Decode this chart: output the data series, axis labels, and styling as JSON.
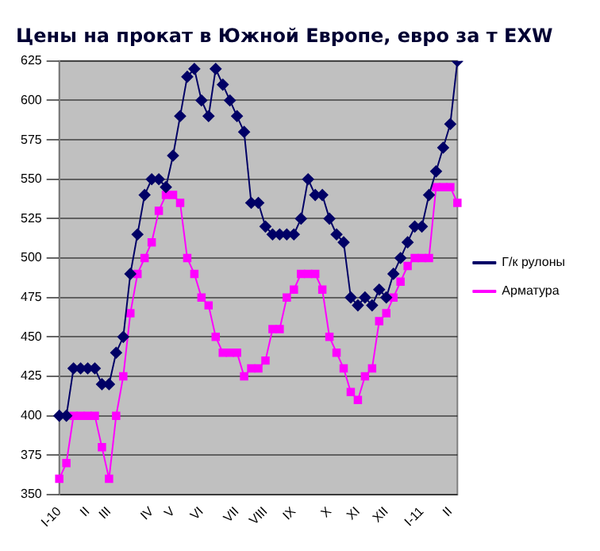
{
  "chart_data": {
    "type": "line",
    "title": "Цены на прокат в Южной Европе, евро за т EXW",
    "categories": [
      "I-10",
      null,
      null,
      null,
      "II",
      null,
      null,
      "III",
      null,
      null,
      null,
      null,
      null,
      "IV",
      null,
      null,
      "V",
      null,
      null,
      null,
      "VI",
      null,
      null,
      null,
      null,
      "VII",
      null,
      null,
      null,
      "VIII",
      null,
      null,
      null,
      "IX",
      null,
      null,
      null,
      null,
      "X",
      null,
      null,
      null,
      "XI",
      null,
      null,
      null,
      "XII",
      null,
      null,
      null,
      null,
      "I-11",
      null,
      null,
      null,
      "II",
      null
    ],
    "series": [
      {
        "name": "Г/к рулоны",
        "color": "#000066",
        "marker": "diamond",
        "values": [
          400,
          400,
          430,
          430,
          430,
          430,
          420,
          420,
          440,
          450,
          490,
          515,
          540,
          550,
          550,
          545,
          565,
          590,
          615,
          620,
          600,
          590,
          620,
          610,
          600,
          590,
          580,
          535,
          535,
          520,
          515,
          515,
          515,
          515,
          525,
          550,
          540,
          540,
          525,
          515,
          510,
          475,
          470,
          475,
          470,
          480,
          475,
          490,
          500,
          510,
          520,
          520,
          540,
          555,
          570,
          585,
          625
        ]
      },
      {
        "name": "Арматура",
        "color": "#ff00ff",
        "marker": "square",
        "values": [
          360,
          370,
          400,
          400,
          400,
          400,
          380,
          360,
          400,
          425,
          465,
          490,
          500,
          510,
          530,
          540,
          540,
          535,
          500,
          490,
          475,
          470,
          450,
          440,
          440,
          440,
          425,
          430,
          430,
          435,
          455,
          455,
          475,
          480,
          490,
          490,
          490,
          480,
          450,
          440,
          430,
          415,
          410,
          425,
          430,
          460,
          465,
          475,
          485,
          495,
          500,
          500,
          500,
          545,
          545,
          545,
          535
        ]
      }
    ],
    "ylim": [
      350,
      625
    ],
    "yticks": [
      350,
      375,
      400,
      425,
      450,
      475,
      500,
      525,
      550,
      575,
      600,
      625
    ],
    "grid": "y",
    "legend": "right"
  }
}
